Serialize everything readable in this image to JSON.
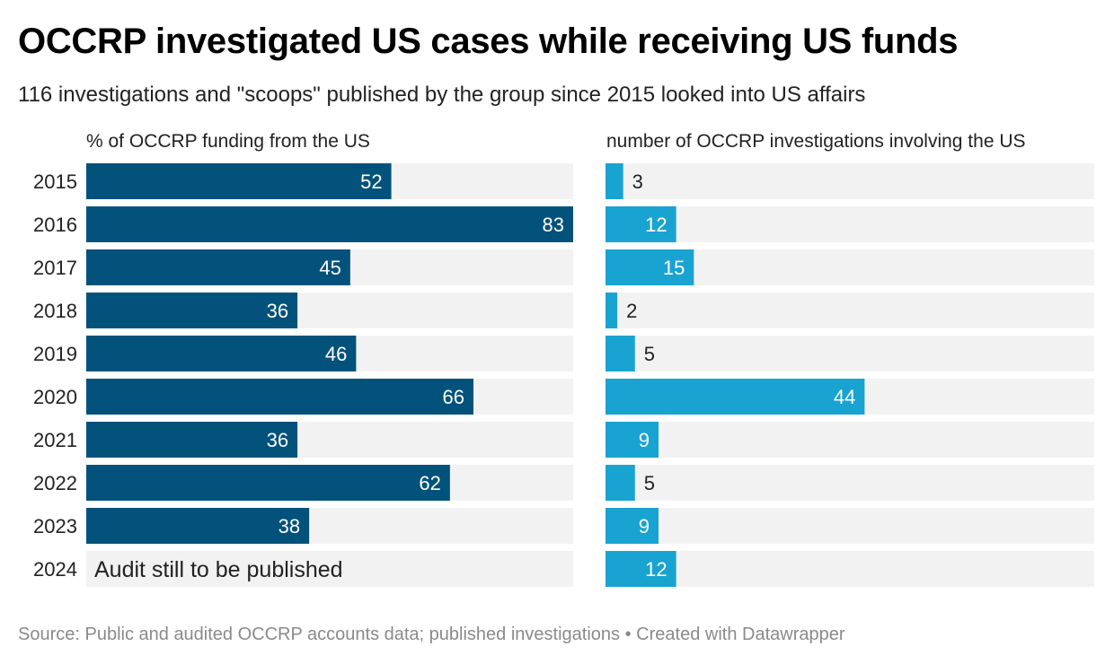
{
  "title": "OCCRP investigated US cases while receiving US funds",
  "subtitle": "116 investigations and \"scoops\" published by the group since 2015 looked into US affairs",
  "footer": {
    "source": "Source: Public and audited OCCRP accounts data; published investigations",
    "separator": " • ",
    "created_with": "Created with Datawrapper"
  },
  "chart_data": [
    {
      "type": "bar",
      "orientation": "horizontal",
      "header": "% of OCCRP funding from the US",
      "categories": [
        "2015",
        "2016",
        "2017",
        "2018",
        "2019",
        "2020",
        "2021",
        "2022",
        "2023",
        "2024"
      ],
      "values": [
        52,
        83,
        45,
        36,
        46,
        66,
        36,
        62,
        38,
        null
      ],
      "notes": {
        "2024": "Audit still to be published"
      },
      "xlim": [
        0,
        83
      ],
      "color": "#03527b",
      "track_color": "#f2f2f2"
    },
    {
      "type": "bar",
      "orientation": "horizontal",
      "header": "number of OCCRP investigations involving the US",
      "categories": [
        "2015",
        "2016",
        "2017",
        "2018",
        "2019",
        "2020",
        "2021",
        "2022",
        "2023",
        "2024"
      ],
      "values": [
        3,
        12,
        15,
        2,
        5,
        44,
        9,
        5,
        9,
        12
      ],
      "xlim": [
        0,
        83
      ],
      "color": "#19a3d1",
      "track_color": "#f2f2f2"
    }
  ]
}
